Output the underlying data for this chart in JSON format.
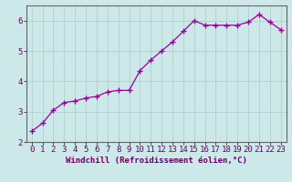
{
  "x": [
    0,
    1,
    2,
    3,
    4,
    5,
    6,
    7,
    8,
    9,
    10,
    11,
    12,
    13,
    14,
    15,
    16,
    17,
    18,
    19,
    20,
    21,
    22,
    23
  ],
  "y": [
    2.35,
    2.62,
    3.05,
    3.3,
    3.35,
    3.45,
    3.5,
    3.65,
    3.7,
    3.7,
    4.35,
    4.7,
    5.0,
    5.3,
    5.65,
    6.0,
    5.85,
    5.85,
    5.85,
    5.85,
    5.95,
    6.2,
    5.95,
    5.7
  ],
  "xlabel": "Windchill (Refroidissement éolien,°C)",
  "ylim": [
    2.0,
    6.5
  ],
  "xlim": [
    -0.5,
    23.5
  ],
  "yticks": [
    2,
    3,
    4,
    5,
    6
  ],
  "xticks": [
    0,
    1,
    2,
    3,
    4,
    5,
    6,
    7,
    8,
    9,
    10,
    11,
    12,
    13,
    14,
    15,
    16,
    17,
    18,
    19,
    20,
    21,
    22,
    23
  ],
  "line_color": "#990099",
  "marker": "+",
  "bg_color": "#cce8e8",
  "grid_color": "#aacccc",
  "tick_color": "#660066",
  "label_color": "#660066",
  "font_size_xlabel": 6.5,
  "font_size_tick": 6.5,
  "linewidth": 0.9,
  "markersize": 4,
  "spine_color": "#666666"
}
